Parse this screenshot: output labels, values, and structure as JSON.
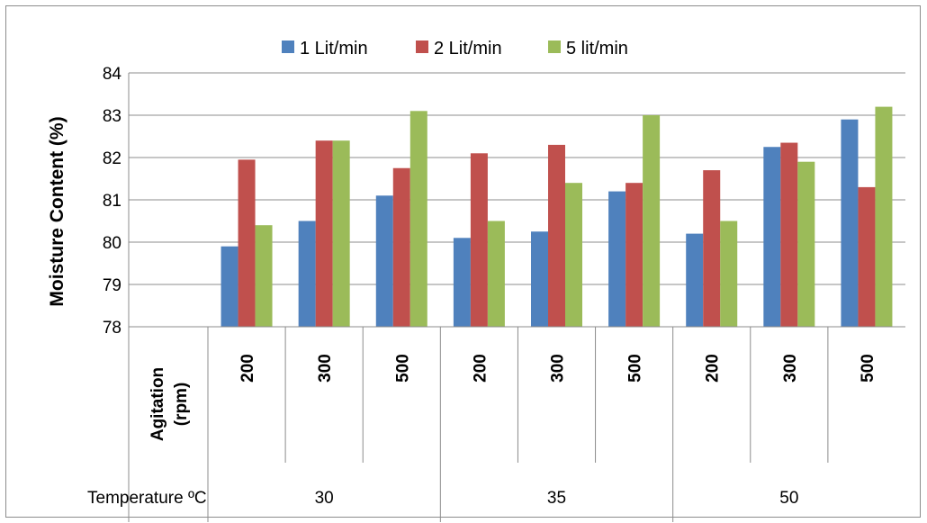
{
  "chart_data": {
    "type": "bar",
    "ylabel": "Moisture Content (%)",
    "ylim": [
      78,
      84
    ],
    "yticks": [
      78,
      79,
      80,
      81,
      82,
      83,
      84
    ],
    "grid": true,
    "legend_position": "top",
    "agitation_label": "Agitation (rpm)",
    "temperature_label": "Temperature ºC",
    "temperatures": [
      "30",
      "35",
      "50"
    ],
    "categories": [
      "200",
      "300",
      "500",
      "200",
      "300",
      "500",
      "200",
      "300",
      "500"
    ],
    "series": [
      {
        "name": "1 Lit/min",
        "color": "#4f81bd",
        "values": [
          79.9,
          80.5,
          81.1,
          80.1,
          80.25,
          81.2,
          80.2,
          82.25,
          82.9
        ]
      },
      {
        "name": "2 Lit/min",
        "color": "#c0504d",
        "values": [
          81.95,
          82.4,
          81.75,
          82.1,
          82.3,
          81.4,
          81.7,
          82.35,
          81.3
        ]
      },
      {
        "name": "5 lit/min",
        "color": "#9bbb59",
        "values": [
          80.4,
          82.4,
          83.1,
          80.5,
          81.4,
          83.0,
          80.5,
          81.9,
          83.2
        ]
      }
    ]
  }
}
